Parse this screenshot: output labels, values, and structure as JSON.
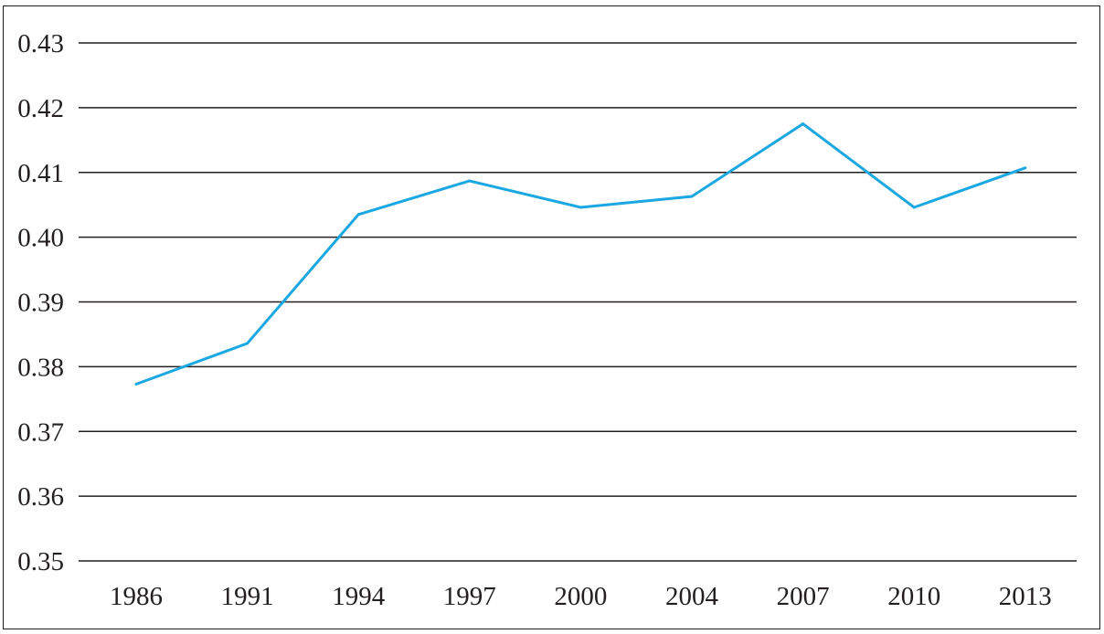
{
  "chart_data": {
    "type": "line",
    "title": "",
    "xlabel": "",
    "ylabel": "",
    "categories": [
      "1986",
      "1991",
      "1994",
      "1997",
      "2000",
      "2004",
      "2007",
      "2010",
      "2013"
    ],
    "series": [
      {
        "values": [
          0.3773,
          0.3836,
          0.4035,
          0.4087,
          0.4046,
          0.4063,
          0.4175,
          0.4046,
          0.4107
        ],
        "color": "#1ba7e1"
      }
    ],
    "ylim": [
      0.35,
      0.43
    ],
    "yticks": [
      "0.35",
      "0.36",
      "0.37",
      "0.38",
      "0.39",
      "0.40",
      "0.41",
      "0.42",
      "0.43"
    ],
    "ytick_values": [
      0.35,
      0.36,
      0.37,
      0.38,
      0.39,
      0.4,
      0.41,
      0.42,
      0.43
    ],
    "grid": "horizontal",
    "legend": "none"
  }
}
